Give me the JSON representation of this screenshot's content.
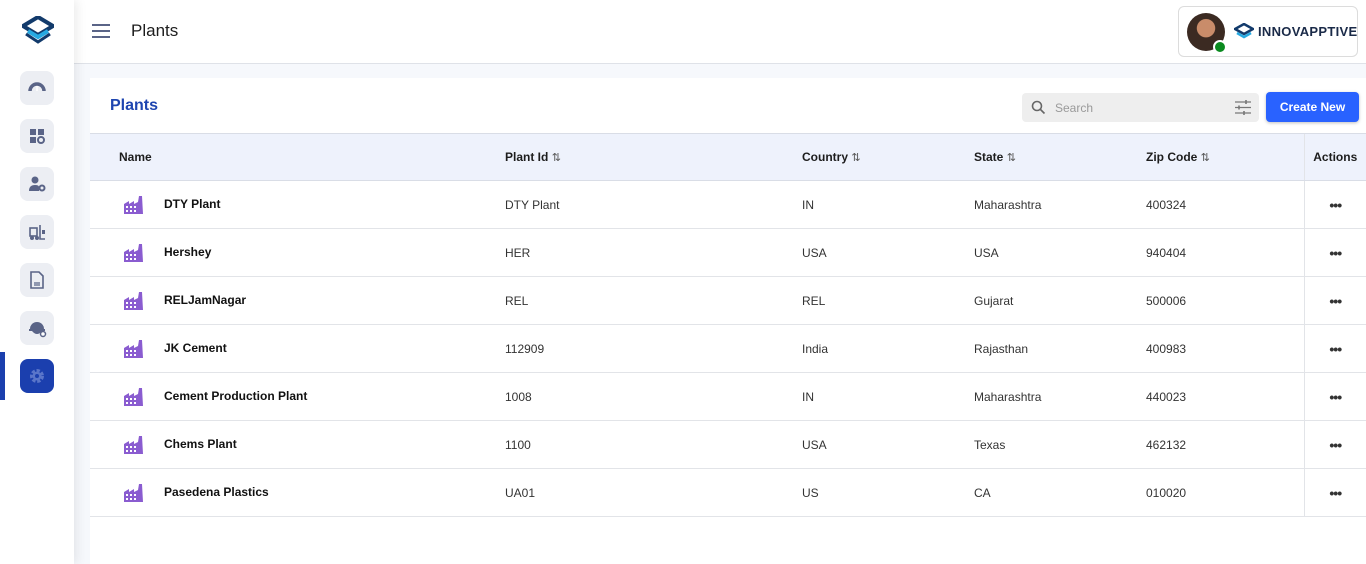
{
  "header": {
    "title": "Plants",
    "brand": "INNOVAPPTIVE"
  },
  "sidebar": {
    "items": [
      {
        "icon": "gauge-icon"
      },
      {
        "icon": "apps-settings-icon"
      },
      {
        "icon": "user-settings-icon"
      },
      {
        "icon": "forklift-icon"
      },
      {
        "icon": "document-icon"
      },
      {
        "icon": "helmet-icon"
      },
      {
        "icon": "gear-icon",
        "active": true
      }
    ]
  },
  "card": {
    "title": "Plants",
    "search_placeholder": "Search",
    "create_label": "Create New"
  },
  "table": {
    "columns": [
      "Name",
      "Plant Id",
      "Country",
      "State",
      "Zip Code",
      "Actions"
    ],
    "sort_glyph": "⇅",
    "rows": [
      {
        "name": "DTY Plant",
        "plant_id": "DTY Plant",
        "country": "IN",
        "state": "Maharashtra",
        "zip": "400324"
      },
      {
        "name": "Hershey",
        "plant_id": "HER",
        "country": "USA",
        "state": "USA",
        "zip": "940404"
      },
      {
        "name": "RELJamNagar",
        "plant_id": "REL",
        "country": "REL",
        "state": "Gujarat",
        "zip": "500006"
      },
      {
        "name": "JK Cement",
        "plant_id": "112909",
        "country": "India",
        "state": "Rajasthan",
        "zip": "400983"
      },
      {
        "name": "Cement Production Plant",
        "plant_id": "1008",
        "country": "IN",
        "state": "Maharashtra",
        "zip": "440023"
      },
      {
        "name": "Chems Plant",
        "plant_id": "1100",
        "country": "USA",
        "state": "Texas",
        "zip": "462132"
      },
      {
        "name": "Pasedena Plastics",
        "plant_id": "UA01",
        "country": "US",
        "state": "CA",
        "zip": "010020"
      }
    ]
  },
  "colors": {
    "accent": "#1e45b0",
    "button": "#2962ff",
    "plant_icon": "#8a5cd0",
    "online": "#0a8a1f"
  }
}
